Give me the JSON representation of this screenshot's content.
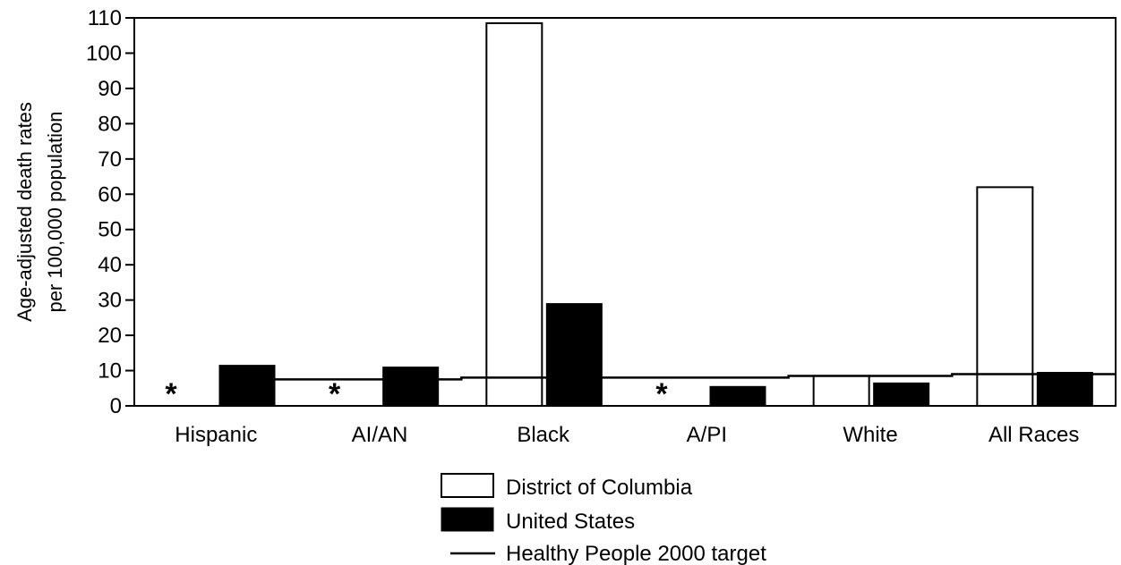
{
  "chart_data": {
    "type": "bar",
    "ylabel_lines": [
      "Age-adjusted death rates",
      "per 100,000 population"
    ],
    "ylim": [
      0,
      110
    ],
    "yticks": [
      0,
      10,
      20,
      30,
      40,
      50,
      60,
      70,
      80,
      90,
      100,
      110
    ],
    "categories": [
      "Hispanic",
      "AI/AN",
      "Black",
      "A/PI",
      "White",
      "All Races"
    ],
    "series": [
      {
        "name": "District of Columbia",
        "fill": "#ffffff",
        "values": [
          null,
          null,
          108.5,
          null,
          8.5,
          62
        ]
      },
      {
        "name": "United States",
        "fill": "#000000",
        "values": [
          11.5,
          11,
          29,
          5.5,
          6.5,
          9.5
        ]
      }
    ],
    "suppressed_marker": "*",
    "target": {
      "name": "Healthy People 2000 target",
      "values": [
        7.5,
        7.5,
        8,
        8,
        8.5,
        9
      ]
    },
    "legend_position": "bottom-center",
    "grid": false
  }
}
